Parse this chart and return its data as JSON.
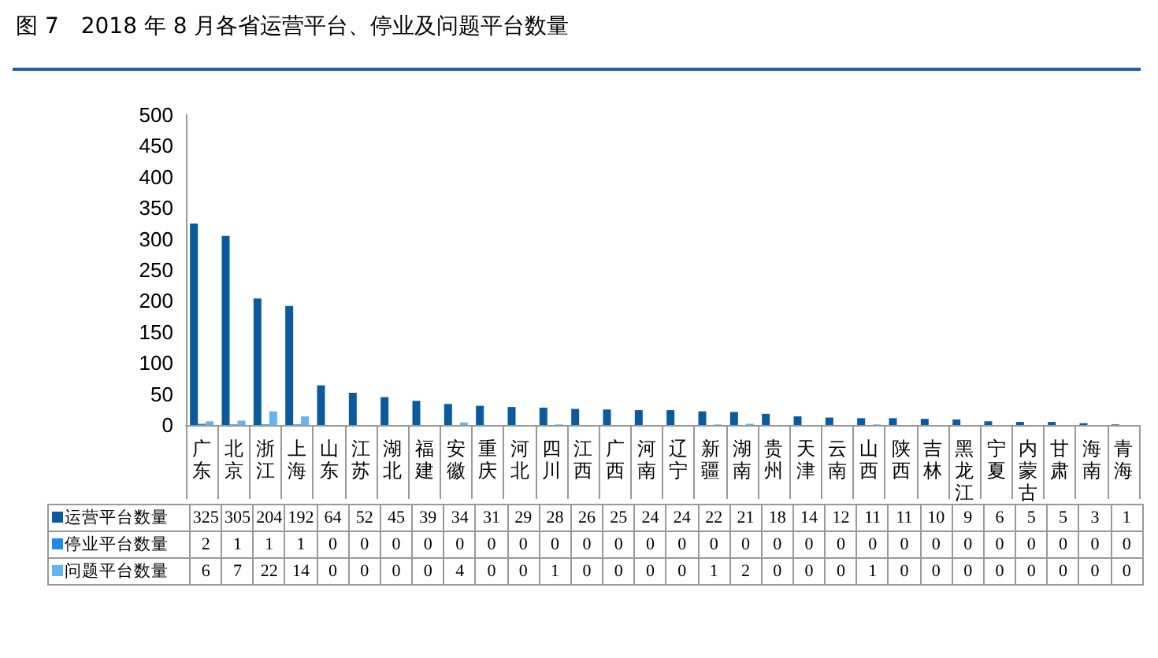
{
  "chart_data": {
    "type": "bar",
    "title": "图 7　2018 年 8 月各省运营平台、停业及问题平台数量",
    "categories": [
      "广东",
      "北京",
      "浙江",
      "上海",
      "山东",
      "江苏",
      "湖北",
      "福建",
      "安徽",
      "重庆",
      "河北",
      "四川",
      "江西",
      "广西",
      "河南",
      "辽宁",
      "新疆",
      "湖南",
      "贵州",
      "天津",
      "云南",
      "山西",
      "陕西",
      "吉林",
      "黑龙江",
      "宁夏",
      "内蒙古",
      "甘肃",
      "海南",
      "青海"
    ],
    "series": [
      {
        "name": "运营平台数量",
        "color": "#0a5aa0",
        "values": [
          325,
          305,
          204,
          192,
          64,
          52,
          45,
          39,
          34,
          31,
          29,
          28,
          26,
          25,
          24,
          24,
          22,
          21,
          18,
          14,
          12,
          11,
          11,
          10,
          9,
          6,
          5,
          5,
          3,
          1
        ]
      },
      {
        "name": "停业平台数量",
        "color": "#1e8ce6",
        "values": [
          2,
          1,
          1,
          1,
          0,
          0,
          0,
          0,
          0,
          0,
          0,
          0,
          0,
          0,
          0,
          0,
          0,
          0,
          0,
          0,
          0,
          0,
          0,
          0,
          0,
          0,
          0,
          0,
          0,
          0
        ]
      },
      {
        "name": "问题平台数量",
        "color": "#64b4f0",
        "values": [
          6,
          7,
          22,
          14,
          0,
          0,
          0,
          0,
          4,
          0,
          0,
          1,
          0,
          0,
          0,
          0,
          1,
          2,
          0,
          0,
          0,
          1,
          0,
          0,
          0,
          0,
          0,
          0,
          0,
          0
        ]
      }
    ],
    "ylim": [
      0,
      500
    ],
    "yticks": [
      0,
      50,
      100,
      150,
      200,
      250,
      300,
      350,
      400,
      450,
      500
    ],
    "grid": false,
    "legend": "bottom",
    "data_labels": true
  }
}
